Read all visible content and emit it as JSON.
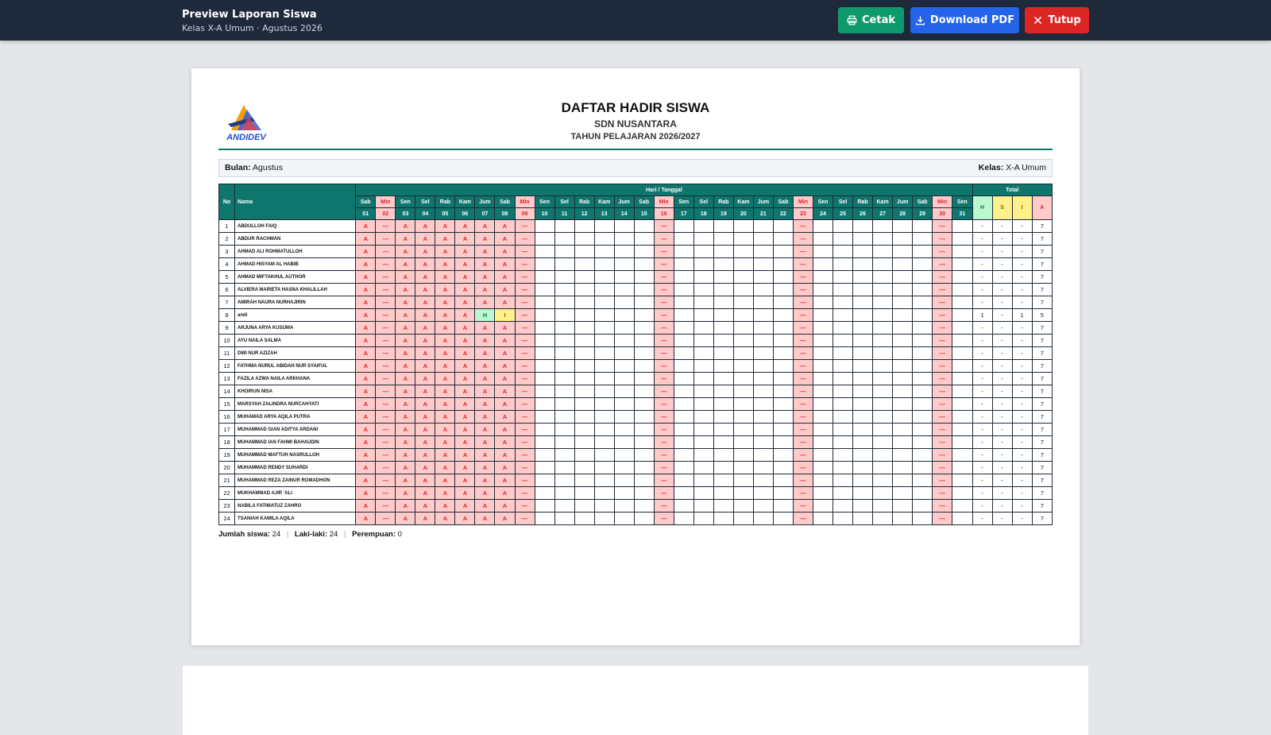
{
  "topbar": {
    "title": "Preview Laporan Siswa",
    "subtitle": "Kelas X-A Umum · Agustus 2026",
    "print_label": "Cetak",
    "pdf_label": "Download PDF",
    "close_label": "Tutup"
  },
  "report": {
    "logo_text": "ANDIDEV",
    "title": "DAFTAR HADIR SISWA",
    "school": "SDN NUSANTARA",
    "year": "TAHUN PELAJARAN 2026/2027",
    "month_label": "Bulan:",
    "month": "Agustus",
    "class_label": "Kelas:",
    "class": "X-A Umum"
  },
  "table": {
    "col_no": "No",
    "col_name": "Nama",
    "group_days": "Hari / Tanggal",
    "group_total": "Total",
    "total_cols": [
      "H",
      "S",
      "I",
      "A"
    ],
    "days": [
      {
        "d": "Sab",
        "n": "01"
      },
      {
        "d": "Min",
        "n": "02"
      },
      {
        "d": "Sen",
        "n": "03"
      },
      {
        "d": "Sel",
        "n": "04"
      },
      {
        "d": "Rab",
        "n": "05"
      },
      {
        "d": "Kam",
        "n": "06"
      },
      {
        "d": "Jum",
        "n": "07"
      },
      {
        "d": "Sab",
        "n": "08"
      },
      {
        "d": "Min",
        "n": "09"
      },
      {
        "d": "Sen",
        "n": "10"
      },
      {
        "d": "Sel",
        "n": "11"
      },
      {
        "d": "Rab",
        "n": "12"
      },
      {
        "d": "Kam",
        "n": "13"
      },
      {
        "d": "Jum",
        "n": "14"
      },
      {
        "d": "Sab",
        "n": "15"
      },
      {
        "d": "Min",
        "n": "16"
      },
      {
        "d": "Sen",
        "n": "17"
      },
      {
        "d": "Sel",
        "n": "18"
      },
      {
        "d": "Rab",
        "n": "19"
      },
      {
        "d": "Kam",
        "n": "20"
      },
      {
        "d": "Jum",
        "n": "21"
      },
      {
        "d": "Sab",
        "n": "22"
      },
      {
        "d": "Min",
        "n": "23"
      },
      {
        "d": "Sen",
        "n": "24"
      },
      {
        "d": "Sel",
        "n": "25"
      },
      {
        "d": "Rab",
        "n": "26"
      },
      {
        "d": "Kam",
        "n": "27"
      },
      {
        "d": "Jum",
        "n": "28"
      },
      {
        "d": "Sab",
        "n": "29"
      },
      {
        "d": "Min",
        "n": "30"
      },
      {
        "d": "Sen",
        "n": "31"
      }
    ],
    "weekend_mark": "—",
    "students": [
      {
        "name": "ABDULLOH FAIQ",
        "marks": "AAAAAAA",
        "tot": [
          "-",
          "-",
          "-",
          "7"
        ]
      },
      {
        "name": "ABDUR RACHMAN",
        "marks": "AAAAAAA",
        "tot": [
          "-",
          "-",
          "-",
          "7"
        ]
      },
      {
        "name": "AHMAD ALI ROHMATULLOH",
        "marks": "AAAAAAA",
        "tot": [
          "-",
          "-",
          "-",
          "7"
        ]
      },
      {
        "name": "AHMAD HISYAM AL HABIB",
        "marks": "AAAAAAA",
        "tot": [
          "-",
          "-",
          "-",
          "7"
        ]
      },
      {
        "name": "AHMAD MIFTAKHUL AUTHOR",
        "marks": "AAAAAAA",
        "tot": [
          "-",
          "-",
          "-",
          "7"
        ]
      },
      {
        "name": "ALVIERA MARIETA HASNA KHALILLAH",
        "marks": "AAAAAAA",
        "tot": [
          "-",
          "-",
          "-",
          "7"
        ]
      },
      {
        "name": "AMIRAH NAURA NURHAJIRIN",
        "marks": "AAAAAAA",
        "tot": [
          "-",
          "-",
          "-",
          "7"
        ]
      },
      {
        "name": "andi",
        "marks": "AAAAAHI",
        "tot": [
          "1",
          "-",
          "1",
          "5"
        ]
      },
      {
        "name": "ARJUNA ARYA KUSUMA",
        "marks": "AAAAAAA",
        "tot": [
          "-",
          "-",
          "-",
          "7"
        ]
      },
      {
        "name": "AYU NAILA SALMA",
        "marks": "AAAAAAA",
        "tot": [
          "-",
          "-",
          "-",
          "7"
        ]
      },
      {
        "name": "DWI NUR AZIZAH",
        "marks": "AAAAAAA",
        "tot": [
          "-",
          "-",
          "-",
          "7"
        ]
      },
      {
        "name": "FATHMA NURUL ABIDAH NUR SYAIFUL",
        "marks": "AAAAAAA",
        "tot": [
          "-",
          "-",
          "-",
          "7"
        ]
      },
      {
        "name": "FAZILA AZWA NAILA ARKHANA",
        "marks": "AAAAAAA",
        "tot": [
          "-",
          "-",
          "-",
          "7"
        ]
      },
      {
        "name": "KHOIRUN NISA",
        "marks": "AAAAAAA",
        "tot": [
          "-",
          "-",
          "-",
          "7"
        ]
      },
      {
        "name": "MARSYAH ZALINDRA NURCAHYATI",
        "marks": "AAAAAAA",
        "tot": [
          "-",
          "-",
          "-",
          "7"
        ]
      },
      {
        "name": "MUHAMAD ARYA AQILA PUTRA",
        "marks": "AAAAAAA",
        "tot": [
          "-",
          "-",
          "-",
          "7"
        ]
      },
      {
        "name": "MUHAMMAD GIAN ADITYA ARDANI",
        "marks": "AAAAAAA",
        "tot": [
          "-",
          "-",
          "-",
          "7"
        ]
      },
      {
        "name": "MUHAMMAD IAN FAHMI BAHAUDIN",
        "marks": "AAAAAAA",
        "tot": [
          "-",
          "-",
          "-",
          "7"
        ]
      },
      {
        "name": "MUHAMMAD MAFTUH NASRULLOH",
        "marks": "AAAAAAA",
        "tot": [
          "-",
          "-",
          "-",
          "7"
        ]
      },
      {
        "name": "MUHAMMAD RENDY SUHARDI",
        "marks": "AAAAAAA",
        "tot": [
          "-",
          "-",
          "-",
          "7"
        ]
      },
      {
        "name": "MUHAMMAD REZA ZAINUR ROMADHON",
        "marks": "AAAAAAA",
        "tot": [
          "-",
          "-",
          "-",
          "7"
        ]
      },
      {
        "name": "MUKHAMMAD AJIR 'ALI",
        "marks": "AAAAAAA",
        "tot": [
          "-",
          "-",
          "-",
          "7"
        ]
      },
      {
        "name": "NABILA FATIMATUZ ZAHRO",
        "marks": "AAAAAAA",
        "tot": [
          "-",
          "-",
          "-",
          "7"
        ]
      },
      {
        "name": "TSANIAH KAMILA AQILA",
        "marks": "AAAAAAA",
        "tot": [
          "-",
          "-",
          "-",
          "7"
        ]
      }
    ]
  },
  "footer": {
    "count_label": "Jumlah siswa:",
    "count": "24",
    "male_label": "Laki-laki:",
    "male": "24",
    "female_label": "Perempuan:",
    "female": "0",
    "separator": "|"
  },
  "colors": {
    "topbar": "#1e293b",
    "header_teal": "#0f766e",
    "absent": "#dc2626",
    "present": "#15803d"
  }
}
